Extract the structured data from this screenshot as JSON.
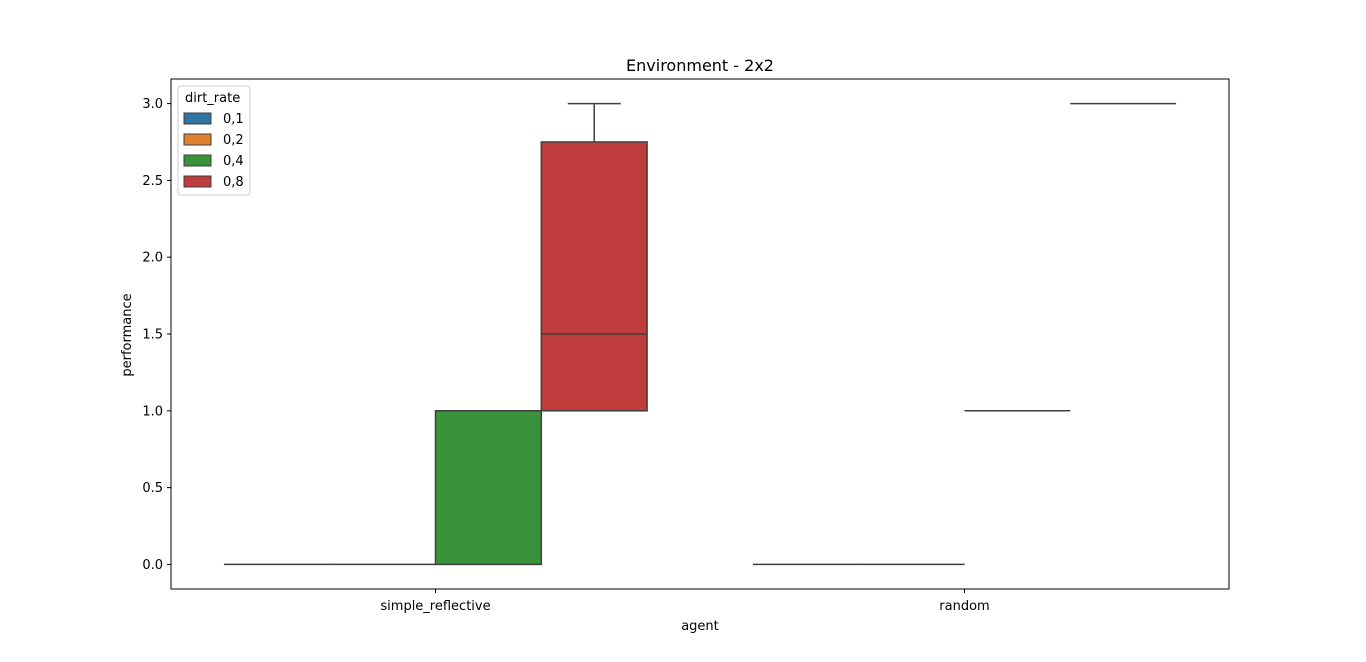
{
  "chart_data": {
    "type": "box",
    "title": "Environment - 2x2",
    "xlabel": "agent",
    "ylabel": "performance",
    "categories": [
      "simple_reflective",
      "random"
    ],
    "ylim": [
      -0.16,
      3.16
    ],
    "yticks": [
      0.0,
      0.5,
      1.0,
      1.5,
      2.0,
      2.5,
      3.0
    ],
    "ytick_labels": [
      "0.0",
      "0.5",
      "1.0",
      "1.5",
      "2.0",
      "2.5",
      "3.0"
    ],
    "grid": false,
    "legend": {
      "title": "dirt_rate",
      "placement": "top-left"
    },
    "series": [
      {
        "name": "0,1",
        "color": "#3274a1",
        "boxes": [
          {
            "q1": 0,
            "median": 0,
            "q3": 0,
            "whisker_low": 0,
            "whisker_high": 0
          },
          {
            "q1": 0,
            "median": 0,
            "q3": 0,
            "whisker_low": 0,
            "whisker_high": 0
          }
        ]
      },
      {
        "name": "0,2",
        "color": "#e1812c",
        "boxes": [
          {
            "q1": 0,
            "median": 0,
            "q3": 0,
            "whisker_low": 0,
            "whisker_high": 0
          },
          {
            "q1": 0,
            "median": 0,
            "q3": 0,
            "whisker_low": 0,
            "whisker_high": 0
          }
        ]
      },
      {
        "name": "0,4",
        "color": "#3a923a",
        "boxes": [
          {
            "q1": 0,
            "median": 1,
            "q3": 1,
            "whisker_low": 0,
            "whisker_high": 1
          },
          {
            "q1": 1,
            "median": 1,
            "q3": 1,
            "whisker_low": 1,
            "whisker_high": 1
          }
        ]
      },
      {
        "name": "0,8",
        "color": "#c03d3e",
        "boxes": [
          {
            "q1": 1,
            "median": 1.5,
            "q3": 2.75,
            "whisker_low": 1,
            "whisker_high": 3
          },
          {
            "q1": 3,
            "median": 3,
            "q3": 3,
            "whisker_low": 3,
            "whisker_high": 3
          }
        ]
      }
    ]
  }
}
